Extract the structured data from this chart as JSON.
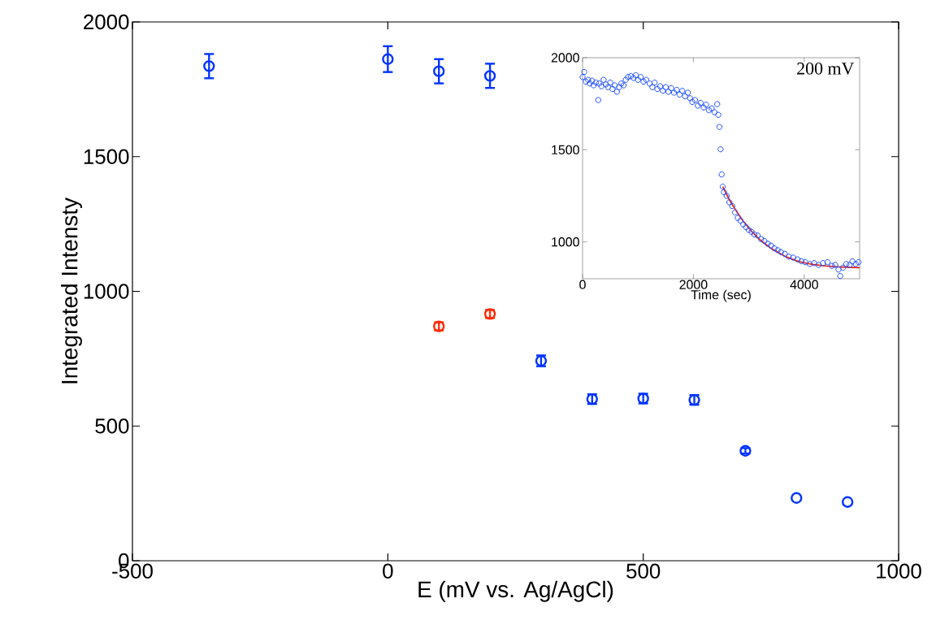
{
  "chart_data": [
    {
      "type": "scatter",
      "xlabel": "E (mV vs. Ag/AgCl)",
      "ylabel": "Integrated Intensty",
      "xlim": [
        -500,
        1000
      ],
      "xticks": [
        -500,
        0,
        500,
        1000
      ],
      "ylim": [
        0,
        2000
      ],
      "yticks": [
        0,
        500,
        1000,
        1500,
        2000
      ],
      "marker": "circle",
      "series": [
        {
          "color": "#0033ff",
          "x": [
            -350,
            0,
            100,
            200,
            300,
            400,
            500,
            600,
            700,
            800,
            900
          ],
          "values": [
            1836,
            1862,
            1817,
            1800,
            742,
            600,
            602,
            597,
            408,
            233,
            218
          ],
          "errors": [
            45,
            48,
            45,
            45,
            20,
            18,
            18,
            18,
            10,
            null,
            null
          ]
        },
        {
          "color": "#ff2a00",
          "x": [
            100,
            200
          ],
          "values": [
            870,
            916
          ],
          "errors": [
            15,
            15
          ]
        }
      ]
    },
    {
      "type": "scatter",
      "xlabel": "Time (sec)",
      "xlim": [
        0,
        5000
      ],
      "xticks": [
        0,
        2000,
        4000
      ],
      "ylim": [
        800,
        2000
      ],
      "yticks": [
        1000,
        1500,
        2000
      ],
      "marker": "circle",
      "annotations": [
        "200 mV"
      ],
      "series": [
        {
          "color": "#1f4fff",
          "x": [
            0,
            30,
            60,
            100,
            130,
            170,
            200,
            240,
            283,
            300,
            340,
            380,
            420,
            460,
            500,
            540,
            580,
            620,
            660,
            700,
            740,
            780,
            820,
            870,
            920,
            960,
            1000,
            1050,
            1100,
            1150,
            1210,
            1260,
            1300,
            1350,
            1400,
            1450,
            1500,
            1550,
            1600,
            1650,
            1700,
            1750,
            1800,
            1850,
            1900,
            1940,
            1980,
            2030,
            2080,
            2130,
            2185,
            2230,
            2280,
            2330,
            2380,
            2430,
            2450,
            2470,
            2490,
            2510,
            2530,
            2550,
            2600,
            2650,
            2700,
            2750,
            2800,
            2850,
            2900,
            2950,
            3000,
            3050,
            3100,
            3160,
            3220,
            3280,
            3340,
            3400,
            3460,
            3520,
            3580,
            3650,
            3720,
            3800,
            3880,
            3950,
            4020,
            4100,
            4180,
            4260,
            4340,
            4420,
            4500,
            4560,
            4620,
            4650,
            4700,
            4760,
            4820,
            4870,
            4930,
            4980
          ],
          "values": [
            1895,
            1923,
            1870,
            1880,
            1860,
            1875,
            1850,
            1865,
            1770,
            1860,
            1845,
            1880,
            1855,
            1840,
            1865,
            1830,
            1850,
            1815,
            1840,
            1860,
            1850,
            1880,
            1895,
            1900,
            1890,
            1905,
            1880,
            1895,
            1870,
            1880,
            1860,
            1840,
            1865,
            1830,
            1845,
            1820,
            1840,
            1815,
            1835,
            1810,
            1825,
            1800,
            1820,
            1790,
            1810,
            1780,
            1760,
            1770,
            1740,
            1755,
            1730,
            1745,
            1715,
            1725,
            1704,
            1748,
            1690,
            1624,
            1503,
            1366,
            1300,
            1270,
            1250,
            1215,
            1195,
            1160,
            1130,
            1115,
            1095,
            1080,
            1065,
            1055,
            1040,
            1035,
            1015,
            1005,
            990,
            980,
            965,
            955,
            945,
            935,
            920,
            915,
            905,
            895,
            890,
            880,
            885,
            875,
            885,
            890,
            870,
            875,
            850,
            815,
            860,
            880,
            875,
            895,
            880,
            890
          ]
        },
        {
          "type": "line",
          "marker": "none",
          "color": "#e8261a",
          "x": [
            2530,
            2650,
            2770,
            2900,
            3050,
            3200,
            3400,
            3650,
            3900,
            4150,
            4400,
            4650,
            5000
          ],
          "values": [
            1300,
            1228,
            1170,
            1112,
            1058,
            1012,
            965,
            922,
            893,
            878,
            869,
            864,
            860
          ]
        }
      ]
    }
  ]
}
